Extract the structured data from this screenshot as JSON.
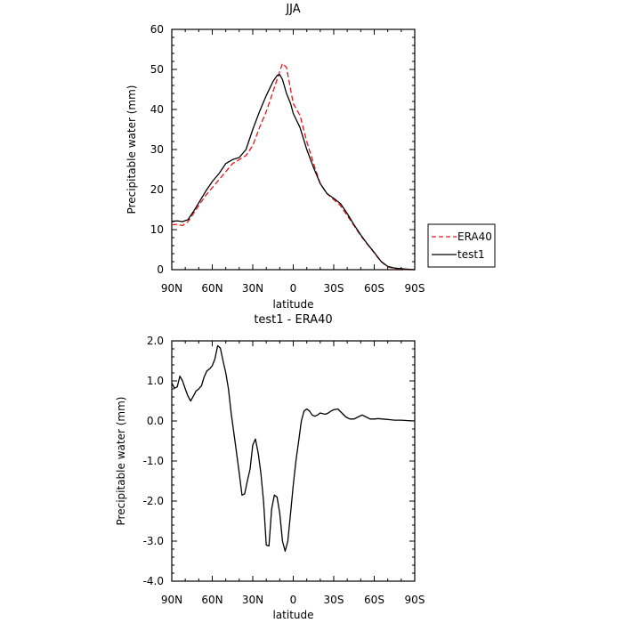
{
  "legend": {
    "items": [
      {
        "name": "ERA40",
        "color": "#e8141a",
        "dash": true
      },
      {
        "name": "test1",
        "color": "#000000",
        "dash": false
      }
    ]
  },
  "chart_data": [
    {
      "type": "line",
      "title": "JJA",
      "xlabel": "latitude",
      "ylabel": "Precipitable water (mm)",
      "xlim": [
        90,
        -90
      ],
      "ylim": [
        0,
        60
      ],
      "xticks": [
        90,
        60,
        30,
        0,
        -30,
        -60,
        -90
      ],
      "xticklabels": [
        "90N",
        "60N",
        "30N",
        "0",
        "30S",
        "60S",
        "90S"
      ],
      "yticks": [
        0,
        10,
        20,
        30,
        40,
        50,
        60
      ],
      "yticklabels": [
        "0",
        "10",
        "20",
        "30",
        "40",
        "50",
        "60"
      ],
      "legend_position": "right, outside plot",
      "series": [
        {
          "name": "ERA40",
          "color": "#e8141a",
          "style": "dashed",
          "x": [
            90,
            86,
            82,
            78,
            74,
            70,
            65,
            60,
            55,
            50,
            45,
            40,
            35,
            30,
            25,
            20,
            15,
            12,
            10,
            8,
            5,
            2,
            0,
            -5,
            -10,
            -15,
            -20,
            -25,
            -30,
            -35,
            -40,
            -45,
            -50,
            -55,
            -60,
            -65,
            -70,
            -75,
            -78,
            -82,
            -86,
            -90
          ],
          "y": [
            11.2,
            11.3,
            11.0,
            12.0,
            14.0,
            16.0,
            18.5,
            20.5,
            22.5,
            24.5,
            26.5,
            27.5,
            28.5,
            31.0,
            35.5,
            39.5,
            44.5,
            47.5,
            49.5,
            51.5,
            50.5,
            45.0,
            41.5,
            38.5,
            32.0,
            26.5,
            21.5,
            19.0,
            17.5,
            16.0,
            13.5,
            11.0,
            8.5,
            6.3,
            4.2,
            2.0,
            0.7,
            0.3,
            0.2,
            0.1,
            0.05,
            0.0
          ]
        },
        {
          "name": "test1",
          "color": "#000000",
          "style": "solid",
          "x": [
            90,
            86,
            82,
            78,
            74,
            70,
            65,
            60,
            55,
            50,
            45,
            40,
            35,
            30,
            25,
            20,
            15,
            12,
            10,
            8,
            5,
            2,
            0,
            -5,
            -10,
            -15,
            -20,
            -25,
            -30,
            -35,
            -40,
            -45,
            -50,
            -55,
            -60,
            -65,
            -70,
            -75,
            -78,
            -82,
            -86,
            -90
          ],
          "y": [
            12.1,
            12.2,
            12.0,
            12.5,
            14.5,
            16.7,
            19.5,
            22.0,
            24.0,
            26.5,
            27.5,
            28.0,
            30.0,
            35.0,
            39.5,
            43.5,
            47.0,
            48.5,
            48.7,
            47.5,
            44.0,
            41.5,
            39.0,
            35.5,
            30.0,
            25.5,
            21.5,
            19.0,
            17.8,
            16.5,
            14.0,
            11.2,
            8.7,
            6.4,
            4.3,
            2.1,
            0.8,
            0.4,
            0.3,
            0.2,
            0.1,
            0.0
          ]
        }
      ]
    },
    {
      "type": "line",
      "title": "test1 - ERA40",
      "xlabel": "latitude",
      "ylabel": "Precipitable water (mm)",
      "xlim": [
        90,
        -90
      ],
      "ylim": [
        -4,
        2
      ],
      "xticks": [
        90,
        60,
        30,
        0,
        -30,
        -60,
        -90
      ],
      "xticklabels": [
        "90N",
        "60N",
        "30N",
        "0",
        "30S",
        "60S",
        "90S"
      ],
      "yticks": [
        2,
        1,
        0,
        -1,
        -2,
        -3,
        -4
      ],
      "yticklabels": [
        "2.0",
        "1.0",
        "0.0",
        "-1.0",
        "-2.0",
        "-3.0",
        "-4.0"
      ],
      "series": [
        {
          "name": "test1 - ERA40",
          "color": "#000000",
          "style": "solid",
          "x": [
            90,
            88,
            86,
            84,
            82,
            80,
            78,
            76,
            74,
            72,
            70,
            68,
            66,
            64,
            62,
            60,
            58,
            56,
            54,
            52,
            50,
            48,
            46,
            44,
            42,
            40,
            38,
            36,
            34,
            32,
            30,
            28,
            26,
            24,
            22,
            20,
            18,
            16,
            14,
            12,
            10,
            8,
            6,
            4,
            2,
            0,
            -2,
            -4,
            -6,
            -8,
            -10,
            -12,
            -14,
            -16,
            -18,
            -20,
            -22,
            -24,
            -26,
            -28,
            -30,
            -33,
            -36,
            -39,
            -42,
            -45,
            -48,
            -51,
            -54,
            -57,
            -60,
            -63,
            -66,
            -69,
            -72,
            -75,
            -80,
            -85,
            -90
          ],
          "y": [
            0.95,
            0.82,
            0.85,
            1.12,
            1.0,
            0.8,
            0.62,
            0.5,
            0.62,
            0.75,
            0.8,
            0.88,
            1.1,
            1.25,
            1.3,
            1.38,
            1.55,
            1.88,
            1.82,
            1.5,
            1.2,
            0.8,
            0.2,
            -0.3,
            -0.8,
            -1.3,
            -1.85,
            -1.82,
            -1.5,
            -1.2,
            -0.6,
            -0.45,
            -0.8,
            -1.3,
            -2.0,
            -3.1,
            -3.12,
            -2.2,
            -1.85,
            -1.9,
            -2.3,
            -3.0,
            -3.25,
            -3.0,
            -2.3,
            -1.6,
            -1.0,
            -0.5,
            0.0,
            0.25,
            0.3,
            0.25,
            0.15,
            0.12,
            0.15,
            0.2,
            0.18,
            0.17,
            0.2,
            0.25,
            0.28,
            0.3,
            0.2,
            0.1,
            0.05,
            0.05,
            0.1,
            0.15,
            0.1,
            0.05,
            0.05,
            0.06,
            0.05,
            0.04,
            0.03,
            0.02,
            0.02,
            0.01,
            0.0
          ]
        }
      ]
    }
  ]
}
